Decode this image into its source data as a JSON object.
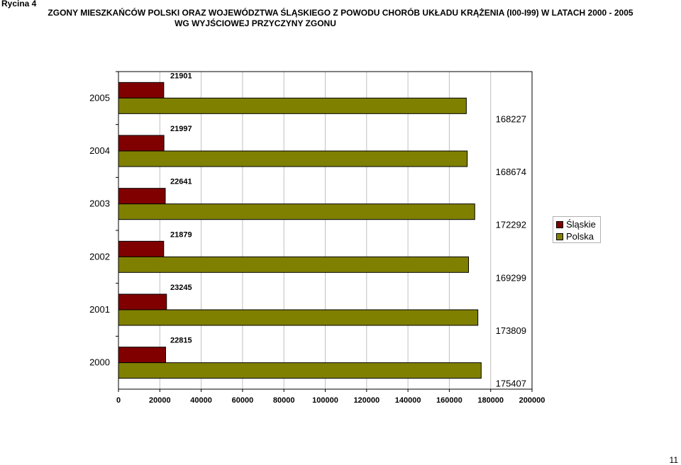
{
  "header": {
    "rycina": "Rycina 4",
    "title_line1": "ZGONY MIESZKAŃCÓW POLSKI ORAZ WOJEWÓDZTWA ŚLĄSKIEGO Z POWODU CHORÓB UKŁADU KRĄŻENIA  (I00-I99)  W LATACH 2000 - 2005",
    "title_line2": "WG WYJŚCIOWEJ PRZYCZYNY ZGONU"
  },
  "page_number": "11",
  "colors": {
    "slaskie": "#800000",
    "polska": "#808000",
    "plot_bg": "#ffffff",
    "grid": "#c0c0c0"
  },
  "chart_data": {
    "type": "bar",
    "orientation": "horizontal",
    "categories": [
      "2005",
      "2004",
      "2003",
      "2002",
      "2001",
      "2000"
    ],
    "series": [
      {
        "name": "Śląskie",
        "values": [
          21901,
          21997,
          22641,
          21879,
          23245,
          22815
        ]
      },
      {
        "name": "Polska",
        "values": [
          168227,
          168674,
          172292,
          169299,
          173809,
          175407
        ]
      }
    ],
    "xlim": [
      0,
      200000
    ],
    "xticks": [
      "0",
      "20000",
      "40000",
      "60000",
      "80000",
      "100000",
      "120000",
      "140000",
      "160000",
      "180000",
      "200000"
    ],
    "grid": true,
    "legend": "right"
  }
}
